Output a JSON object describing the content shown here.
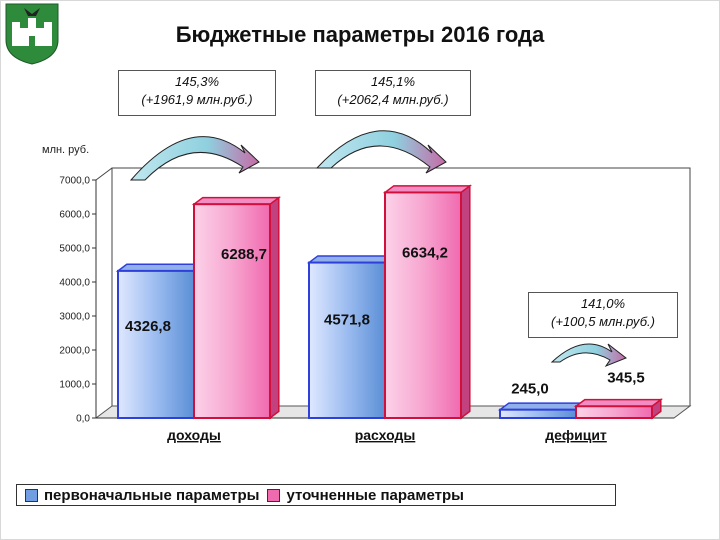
{
  "title": "Бюджетные параметры 2016 года",
  "colors": {
    "initial": "#5b8fd6",
    "refined": "#f06ab0",
    "initial_edge": "#2f3fd9",
    "refined_edge": "#d0103a",
    "arrow": "#8fd0df"
  },
  "callouts": [
    {
      "line1": "145,3%",
      "line2": "(+1961,9 млн.руб.)"
    },
    {
      "line1": "145,1%",
      "line2": "(+2062,4 млн.руб.)"
    },
    {
      "line1": "141,0%",
      "line2": "(+100,5 млн.руб.)"
    }
  ],
  "legend": {
    "initial": "первоначальные параметры",
    "refined": "уточненные параметры"
  },
  "chart_data": {
    "type": "bar",
    "title": "Бюджетные параметры 2016 года",
    "ylabel": "млн. руб.",
    "xlabel": "",
    "ylim": [
      0,
      7000
    ],
    "yticks": [
      "0,0",
      "1000,0",
      "2000,0",
      "3000,0",
      "4000,0",
      "5000,0",
      "6000,0",
      "7000,0"
    ],
    "categories": [
      "доходы",
      "расходы",
      "дефицит"
    ],
    "series": [
      {
        "name": "первоначальные параметры",
        "values": [
          4326.8,
          4571.8,
          245.0
        ],
        "labels": [
          "4326,8",
          "4571,8",
          "245,0"
        ]
      },
      {
        "name": "уточненные параметры",
        "values": [
          6288.7,
          6634.2,
          345.5
        ],
        "labels": [
          "6288,7",
          "6634,2",
          "345,5"
        ]
      }
    ],
    "grid": false,
    "legend_position": "bottom"
  }
}
